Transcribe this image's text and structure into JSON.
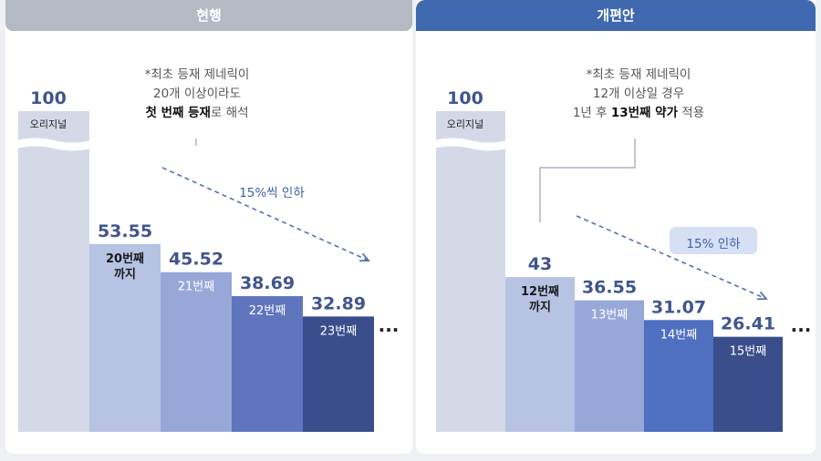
{
  "chart_data": [
    {
      "type": "bar",
      "title": "현행",
      "categories": [
        "오리지널",
        "20번째 까지",
        "21번째",
        "22번째",
        "23번째"
      ],
      "values": [
        100,
        53.55,
        45.52,
        38.69,
        32.89
      ],
      "value_labels": [
        "100",
        "53.55",
        "45.52",
        "38.69",
        "32.89"
      ],
      "bar_labels": [
        "오리지널",
        "20번째\n까지",
        "21번째",
        "22번째",
        "23번째"
      ],
      "note_lines": [
        "*최초 등재 제네릭이",
        "20개 이상이라도"
      ],
      "note_bold_line": {
        "bold": "첫 번째 등재",
        "rest": "로 해석"
      },
      "trend_label": "15%씩 인하",
      "ellipsis": "...",
      "colors": [
        "#d4d9e8",
        "#b7c3e3",
        "#97a8d8",
        "#5f76bf",
        "#3a4e8c"
      ]
    },
    {
      "type": "bar",
      "title": "개편안",
      "categories": [
        "오리지널",
        "12번째 까지",
        "13번째",
        "14번째",
        "15번째"
      ],
      "values": [
        100,
        43,
        36.55,
        31.07,
        26.41
      ],
      "value_labels": [
        "100",
        "43",
        "36.55",
        "31.07",
        "26.41"
      ],
      "bar_labels": [
        "오리지널",
        "12번째\n까지",
        "13번째",
        "14번째",
        "15번째"
      ],
      "note_lines": [
        "*최초 등재 제네릭이",
        "12개 이상일 경우"
      ],
      "note_bold_line": {
        "prefix": "1년 후 ",
        "bold": "13번째 약가",
        "rest": " 적용"
      },
      "trend_label": "15% 인하",
      "ellipsis": "...",
      "colors": [
        "#d4d9e8",
        "#b7c3e3",
        "#97a8d8",
        "#4f6fc0",
        "#3a4e8c"
      ]
    }
  ]
}
